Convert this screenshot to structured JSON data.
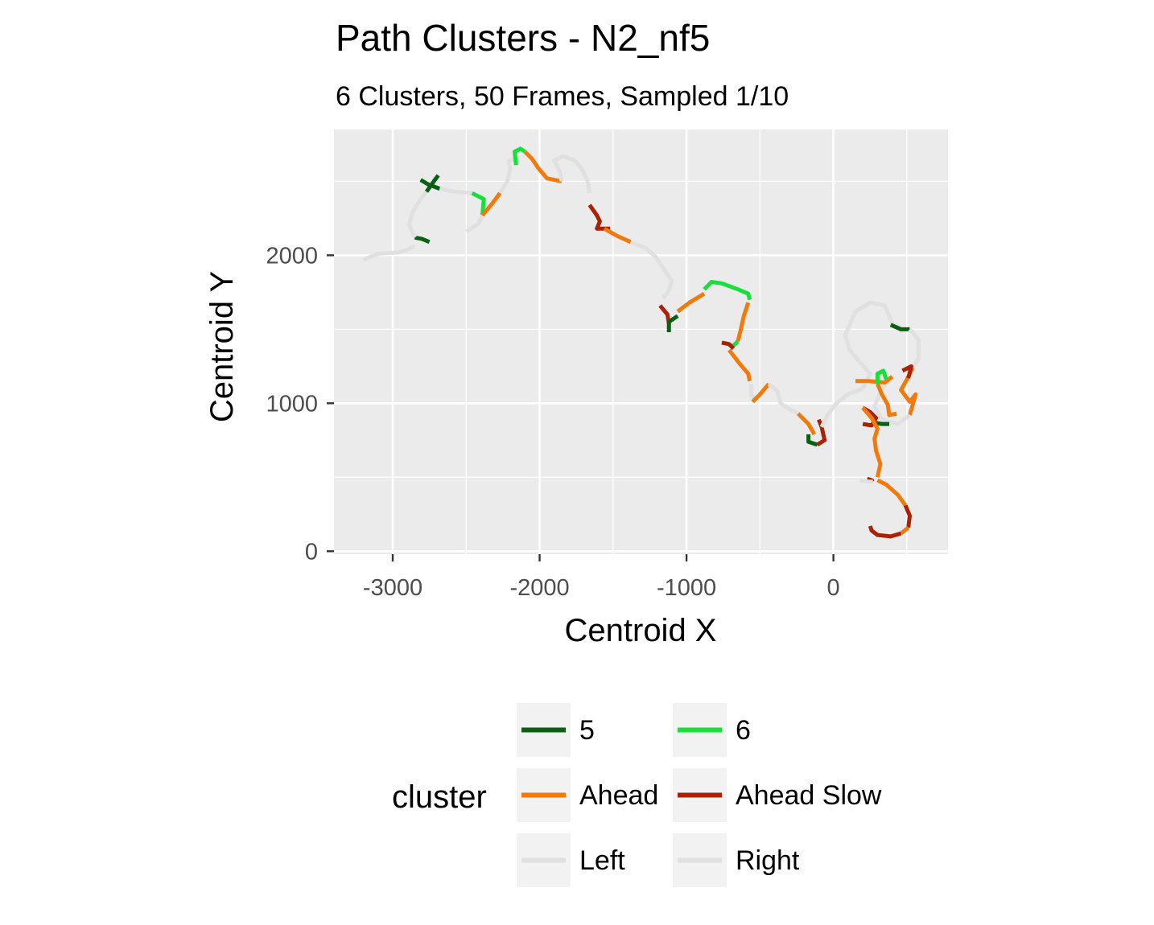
{
  "chart_data": {
    "type": "line",
    "title": "Path Clusters - N2_nf5",
    "subtitle": "6 Clusters, 50 Frames, Sampled 1/10",
    "xlabel": "Centroid X",
    "ylabel": "Centroid Y",
    "xlim": [
      -3400,
      780
    ],
    "ylim": [
      -20,
      2850
    ],
    "x_ticks": [
      -3000,
      -2000,
      -1000,
      0
    ],
    "x_tick_labels": [
      "-3000",
      "-2000",
      "-1000",
      "0"
    ],
    "y_ticks": [
      0,
      1000,
      2000
    ],
    "y_tick_labels": [
      "0",
      "1000",
      "2000"
    ],
    "grid": true,
    "legend": {
      "title": "cluster",
      "placement": "bottom",
      "entries": [
        {
          "label": "5",
          "color": "#0b5f14"
        },
        {
          "label": "6",
          "color": "#18e03a"
        },
        {
          "label": "Ahead",
          "color": "#f17a0c"
        },
        {
          "label": "Ahead Slow",
          "color": "#aa2206"
        },
        {
          "label": "Left",
          "color": "#e0e0e0"
        },
        {
          "label": "Right",
          "color": "#e0e0e0"
        }
      ]
    },
    "colors": {
      "5": "#0b5f14",
      "6": "#18e03a",
      "Ahead": "#f17a0c",
      "Ahead Slow": "#aa2206",
      "Left": "#e0e0e0",
      "Right": "#e0e0e0"
    },
    "series": [
      {
        "cluster": "Left",
        "points": [
          [
            -3200,
            1970
          ],
          [
            -3100,
            2010
          ],
          [
            -2950,
            2020
          ],
          [
            -2850,
            2060
          ]
        ]
      },
      {
        "cluster": "5",
        "points": [
          [
            -2850,
            2120
          ],
          [
            -2800,
            2110
          ],
          [
            -2750,
            2090
          ]
        ]
      },
      {
        "cluster": "Left",
        "points": [
          [
            -2850,
            2120
          ],
          [
            -2890,
            2210
          ],
          [
            -2860,
            2300
          ],
          [
            -2810,
            2380
          ],
          [
            -2770,
            2430
          ]
        ]
      },
      {
        "cluster": "5",
        "points": [
          [
            -2770,
            2430
          ],
          [
            -2720,
            2500
          ],
          [
            -2690,
            2540
          ]
        ]
      },
      {
        "cluster": "5",
        "points": [
          [
            -2810,
            2510
          ],
          [
            -2760,
            2480
          ],
          [
            -2680,
            2450
          ]
        ]
      },
      {
        "cluster": "Left",
        "points": [
          [
            -2680,
            2450
          ],
          [
            -2580,
            2430
          ],
          [
            -2460,
            2420
          ]
        ]
      },
      {
        "cluster": "6",
        "points": [
          [
            -2460,
            2420
          ],
          [
            -2380,
            2380
          ],
          [
            -2390,
            2270
          ]
        ]
      },
      {
        "cluster": "Left",
        "points": [
          [
            -2390,
            2270
          ],
          [
            -2420,
            2210
          ],
          [
            -2500,
            2160
          ]
        ]
      },
      {
        "cluster": "Ahead",
        "points": [
          [
            -2390,
            2270
          ],
          [
            -2330,
            2340
          ],
          [
            -2270,
            2420
          ]
        ]
      },
      {
        "cluster": "Left",
        "points": [
          [
            -2270,
            2420
          ],
          [
            -2220,
            2500
          ],
          [
            -2200,
            2580
          ],
          [
            -2210,
            2640
          ],
          [
            -2180,
            2650
          ]
        ]
      },
      {
        "cluster": "6",
        "points": [
          [
            -2160,
            2610
          ],
          [
            -2170,
            2700
          ],
          [
            -2130,
            2720
          ],
          [
            -2100,
            2700
          ]
        ]
      },
      {
        "cluster": "Ahead",
        "points": [
          [
            -2100,
            2700
          ],
          [
            -2050,
            2650
          ],
          [
            -2010,
            2590
          ],
          [
            -1950,
            2520
          ],
          [
            -1850,
            2500
          ]
        ]
      },
      {
        "cluster": "Left",
        "points": [
          [
            -1850,
            2500
          ],
          [
            -1860,
            2560
          ],
          [
            -1900,
            2640
          ],
          [
            -1840,
            2670
          ],
          [
            -1760,
            2640
          ],
          [
            -1710,
            2580
          ],
          [
            -1670,
            2490
          ],
          [
            -1660,
            2420
          ]
        ]
      },
      {
        "cluster": "Ahead Slow",
        "points": [
          [
            -1660,
            2340
          ],
          [
            -1610,
            2270
          ],
          [
            -1590,
            2230
          ],
          [
            -1610,
            2180
          ],
          [
            -1570,
            2180
          ],
          [
            -1520,
            2180
          ]
        ]
      },
      {
        "cluster": "Ahead",
        "points": [
          [
            -1560,
            2180
          ],
          [
            -1470,
            2130
          ],
          [
            -1380,
            2090
          ]
        ]
      },
      {
        "cluster": "Right",
        "points": [
          [
            -1380,
            2090
          ],
          [
            -1280,
            2050
          ],
          [
            -1210,
            1990
          ],
          [
            -1150,
            1900
          ],
          [
            -1100,
            1830
          ],
          [
            -1120,
            1760
          ],
          [
            -1160,
            1710
          ]
        ]
      },
      {
        "cluster": "Ahead Slow",
        "points": [
          [
            -1180,
            1660
          ],
          [
            -1130,
            1600
          ],
          [
            -1120,
            1540
          ]
        ]
      },
      {
        "cluster": "5",
        "points": [
          [
            -1120,
            1480
          ],
          [
            -1120,
            1550
          ],
          [
            -1060,
            1590
          ]
        ]
      },
      {
        "cluster": "Ahead",
        "points": [
          [
            -1060,
            1620
          ],
          [
            -980,
            1680
          ],
          [
            -880,
            1740
          ]
        ]
      },
      {
        "cluster": "6",
        "points": [
          [
            -880,
            1770
          ],
          [
            -830,
            1820
          ],
          [
            -760,
            1810
          ],
          [
            -650,
            1770
          ],
          [
            -580,
            1740
          ],
          [
            -570,
            1700
          ]
        ]
      },
      {
        "cluster": "Ahead",
        "points": [
          [
            -580,
            1680
          ],
          [
            -610,
            1590
          ],
          [
            -630,
            1500
          ],
          [
            -650,
            1420
          ]
        ]
      },
      {
        "cluster": "6",
        "points": [
          [
            -650,
            1420
          ],
          [
            -690,
            1380
          ]
        ]
      },
      {
        "cluster": "Ahead Slow",
        "points": [
          [
            -760,
            1410
          ],
          [
            -710,
            1400
          ],
          [
            -680,
            1370
          ]
        ]
      },
      {
        "cluster": "Ahead",
        "points": [
          [
            -710,
            1360
          ],
          [
            -640,
            1270
          ],
          [
            -580,
            1200
          ],
          [
            -570,
            1150
          ]
        ]
      },
      {
        "cluster": "Right",
        "points": [
          [
            -560,
            1130
          ],
          [
            -560,
            1060
          ],
          [
            -530,
            1020
          ]
        ]
      },
      {
        "cluster": "Ahead",
        "points": [
          [
            -550,
            1010
          ],
          [
            -500,
            1060
          ],
          [
            -440,
            1130
          ]
        ]
      },
      {
        "cluster": "Right",
        "points": [
          [
            -440,
            1130
          ],
          [
            -380,
            1080
          ],
          [
            -360,
            1000
          ],
          [
            -300,
            960
          ],
          [
            -240,
            930
          ]
        ]
      },
      {
        "cluster": "Ahead",
        "points": [
          [
            -240,
            930
          ],
          [
            -170,
            860
          ],
          [
            -130,
            790
          ]
        ]
      },
      {
        "cluster": "5",
        "points": [
          [
            -170,
            790
          ],
          [
            -170,
            740
          ],
          [
            -110,
            720
          ]
        ]
      },
      {
        "cluster": "Ahead Slow",
        "points": [
          [
            -110,
            720
          ],
          [
            -60,
            750
          ],
          [
            -80,
            840
          ],
          [
            -100,
            890
          ]
        ]
      },
      {
        "cluster": "Right",
        "points": [
          [
            -80,
            840
          ],
          [
            -40,
            920
          ],
          [
            20,
            1000
          ],
          [
            100,
            1060
          ],
          [
            200,
            1100
          ]
        ]
      },
      {
        "cluster": "Right",
        "points": [
          [
            200,
            1100
          ],
          [
            250,
            1200
          ],
          [
            170,
            1290
          ],
          [
            110,
            1360
          ],
          [
            80,
            1460
          ],
          [
            150,
            1620
          ],
          [
            250,
            1680
          ],
          [
            350,
            1660
          ],
          [
            400,
            1540
          ],
          [
            460,
            1510
          ]
        ]
      },
      {
        "cluster": "5",
        "points": [
          [
            390,
            1530
          ],
          [
            460,
            1500
          ],
          [
            520,
            1500
          ]
        ]
      },
      {
        "cluster": "Right",
        "points": [
          [
            520,
            1500
          ],
          [
            580,
            1430
          ],
          [
            580,
            1300
          ],
          [
            540,
            1240
          ]
        ]
      },
      {
        "cluster": "Ahead",
        "points": [
          [
            540,
            1240
          ],
          [
            500,
            1160
          ],
          [
            460,
            1090
          ],
          [
            520,
            1010
          ],
          [
            560,
            1060
          ],
          [
            520,
            920
          ]
        ]
      },
      {
        "cluster": "Right",
        "points": [
          [
            520,
            920
          ],
          [
            440,
            860
          ],
          [
            330,
            890
          ],
          [
            280,
            980
          ],
          [
            330,
            1100
          ],
          [
            400,
            1180
          ]
        ]
      },
      {
        "cluster": "Ahead Slow",
        "points": [
          [
            470,
            1220
          ],
          [
            530,
            1250
          ],
          [
            510,
            1170
          ]
        ]
      },
      {
        "cluster": "Ahead",
        "points": [
          [
            400,
            1180
          ],
          [
            350,
            1140
          ],
          [
            240,
            1150
          ],
          [
            150,
            1150
          ]
        ]
      },
      {
        "cluster": "6",
        "points": [
          [
            360,
            1160
          ],
          [
            340,
            1220
          ],
          [
            300,
            1200
          ],
          [
            300,
            1130
          ]
        ]
      },
      {
        "cluster": "Ahead",
        "points": [
          [
            300,
            1130
          ],
          [
            330,
            1060
          ],
          [
            370,
            990
          ],
          [
            380,
            920
          ],
          [
            430,
            930
          ]
        ]
      },
      {
        "cluster": "5",
        "points": [
          [
            270,
            870
          ],
          [
            330,
            860
          ],
          [
            380,
            860
          ]
        ]
      },
      {
        "cluster": "Ahead Slow",
        "points": [
          [
            200,
            860
          ],
          [
            260,
            850
          ],
          [
            290,
            900
          ],
          [
            250,
            940
          ],
          [
            200,
            970
          ]
        ]
      },
      {
        "cluster": "Ahead",
        "points": [
          [
            200,
            970
          ],
          [
            260,
            900
          ],
          [
            300,
            830
          ],
          [
            280,
            760
          ],
          [
            290,
            680
          ],
          [
            320,
            590
          ],
          [
            300,
            500
          ]
        ]
      },
      {
        "cluster": "Ahead Slow",
        "points": [
          [
            230,
            490
          ],
          [
            260,
            480
          ],
          [
            270,
            470
          ]
        ]
      },
      {
        "cluster": "Right",
        "points": [
          [
            180,
            480
          ],
          [
            240,
            470
          ],
          [
            270,
            470
          ]
        ]
      },
      {
        "cluster": "Ahead",
        "points": [
          [
            300,
            480
          ],
          [
            360,
            450
          ],
          [
            440,
            380
          ],
          [
            490,
            310
          ]
        ]
      },
      {
        "cluster": "Ahead Slow",
        "points": [
          [
            490,
            310
          ],
          [
            520,
            240
          ],
          [
            510,
            160
          ]
        ]
      },
      {
        "cluster": "Ahead",
        "points": [
          [
            510,
            160
          ],
          [
            460,
            120
          ]
        ]
      },
      {
        "cluster": "Ahead Slow",
        "points": [
          [
            460,
            120
          ],
          [
            390,
            100
          ],
          [
            300,
            110
          ],
          [
            260,
            140
          ],
          [
            250,
            170
          ]
        ]
      }
    ]
  }
}
